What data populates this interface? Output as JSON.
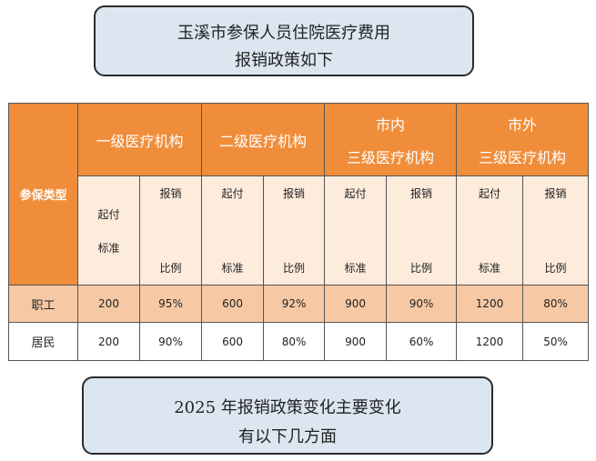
{
  "title": {
    "line1": "玉溪市参保人员住院医疗费用",
    "line2": "报销政策如下"
  },
  "table": {
    "type_header": "参保类型",
    "levels": [
      {
        "line1": "一级医疗机构",
        "line2": ""
      },
      {
        "line1": "二级医疗机构",
        "line2": ""
      },
      {
        "line1": "市内",
        "line2": "三级医疗机构"
      },
      {
        "line1": "市外",
        "line2": "三级医疗机构"
      }
    ],
    "sub": {
      "deductible_l1": "起付",
      "deductible_l2": "标准",
      "ratio_l1": "报销",
      "ratio_l2": "比例"
    },
    "rows": [
      {
        "type": "职工",
        "values": [
          "200",
          "95%",
          "600",
          "92%",
          "900",
          "90%",
          "1200",
          "80%"
        ]
      },
      {
        "type": "居民",
        "values": [
          "200",
          "90%",
          "600",
          "80%",
          "900",
          "60%",
          "1200",
          "50%"
        ]
      }
    ]
  },
  "footer": {
    "line1": "2025 年报销政策变化主要变化",
    "line2": "有以下几方面"
  }
}
